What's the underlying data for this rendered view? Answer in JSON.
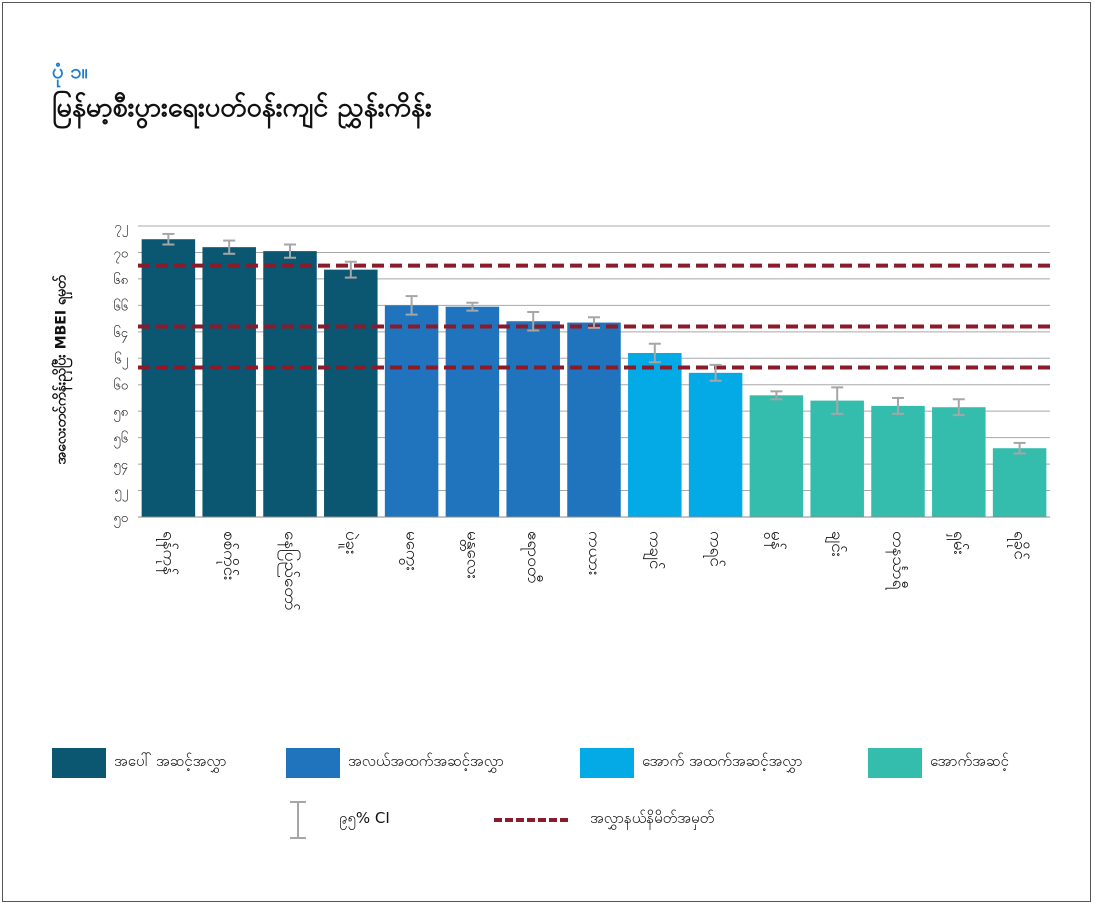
{
  "header": {
    "figure_number": "ပုံ ၁။",
    "title": "မြန်မာ့စီးပွားရေးပတ်ဝန်းကျင် ညွှန်းကိန်း"
  },
  "chart_data": {
    "type": "bar",
    "ylabel": "အလေးတင်ကိန်းညှိပြီး MBEI ရမှတ်",
    "ylim": [
      50,
      72
    ],
    "y_ticks": [
      50,
      52,
      54,
      56,
      58,
      60,
      62,
      64,
      66,
      68,
      70,
      72
    ],
    "y_tick_labels": [
      "၅၀",
      "၅၂",
      "၅၄",
      "၅၆",
      "၅၈",
      "၆၀",
      "၆၂",
      "၆၄",
      "၆၆",
      "၆၈",
      "၇၀",
      "၇၂"
    ],
    "grid": true,
    "categories": [
      "ရန်ကုန်",
      "စစ်ကိုင်း",
      "နေပြည်တော်",
      "ပဲခူး",
      "မကွေး",
      "မန္တလေး",
      "ဧရာဝတီ",
      "ကယား",
      "ကချင်",
      "ကရင်",
      "မွန်",
      "ချင်း",
      "တနင်္သာရီ",
      "ရှမ်း",
      "ရခိုင်"
    ],
    "values": [
      71.0,
      70.4,
      70.1,
      68.7,
      66.0,
      65.9,
      64.8,
      64.7,
      62.4,
      60.9,
      59.2,
      58.8,
      58.4,
      58.3,
      55.2
    ],
    "ci_lower": [
      70.6,
      69.9,
      69.6,
      68.1,
      65.3,
      65.6,
      64.1,
      64.3,
      61.7,
      60.3,
      58.9,
      57.8,
      57.8,
      57.7,
      54.8
    ],
    "ci_upper": [
      71.4,
      70.9,
      70.6,
      69.3,
      66.7,
      66.2,
      65.5,
      65.1,
      63.1,
      61.5,
      59.5,
      59.8,
      59.0,
      58.9,
      55.6
    ],
    "tier": [
      0,
      0,
      0,
      0,
      1,
      1,
      1,
      1,
      2,
      2,
      3,
      3,
      3,
      3,
      3
    ],
    "thresholds": [
      69.0,
      64.4,
      61.3
    ],
    "legend_placement": "bottom",
    "legend": [
      {
        "label": "အပေါ် အဆင့်အလွှာ",
        "color": "#0b5670"
      },
      {
        "label": "အလယ်အထက်အဆင့်အလွှာ",
        "color": "#1f74bd"
      },
      {
        "label": "အောက် အထက်အဆင့်အလွှာ",
        "color": "#03aae5"
      },
      {
        "label": "အောက်အဆင့်",
        "color": "#34bcad"
      }
    ],
    "ci_label": "၉၅% CI",
    "threshold_label": "အလွှာနယ်နိမိတ်အမှတ်",
    "colors": {
      "threshold": "#8b1a2b",
      "error_bar": "#a6a6a6",
      "grid": "#a8a8a8"
    }
  }
}
